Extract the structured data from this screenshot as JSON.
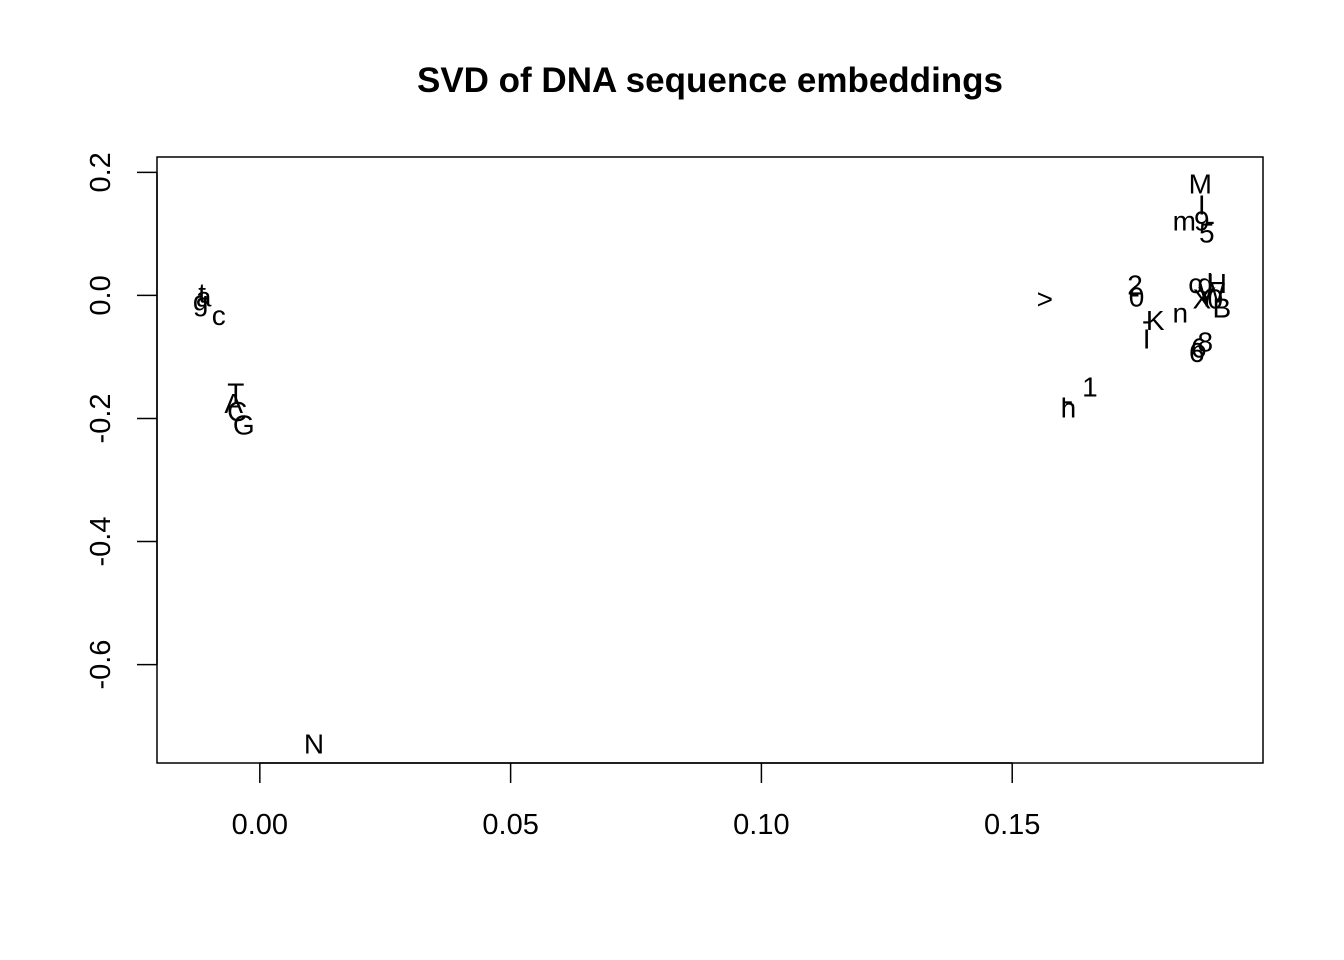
{
  "chart_data": {
    "type": "scatter",
    "title": "SVD of DNA sequence embeddings",
    "xlabel": "",
    "ylabel": "",
    "xlim": [
      -0.0205,
      0.2
    ],
    "ylim": [
      -0.76,
      0.225
    ],
    "x_ticks": [
      {
        "value": 0.0,
        "label": "0.00"
      },
      {
        "value": 0.05,
        "label": "0.05"
      },
      {
        "value": 0.1,
        "label": "0.10"
      },
      {
        "value": 0.15,
        "label": "0.15"
      }
    ],
    "y_ticks": [
      {
        "value": 0.2,
        "label": "0.2"
      },
      {
        "value": 0.0,
        "label": "0.0"
      },
      {
        "value": -0.2,
        "label": "-0.2"
      },
      {
        "value": -0.4,
        "label": "-0.4"
      },
      {
        "value": -0.6,
        "label": "-0.6"
      }
    ],
    "grid": false,
    "legend": "none",
    "points": [
      {
        "label": "t",
        "x": -0.0115,
        "y": 0.005
      },
      {
        "label": "a",
        "x": -0.0112,
        "y": -0.002
      },
      {
        "label": "g",
        "x": -0.0118,
        "y": -0.008
      },
      {
        "label": "c",
        "x": -0.0082,
        "y": -0.032
      },
      {
        "label": "T",
        "x": -0.0048,
        "y": -0.158
      },
      {
        "label": "A",
        "x": -0.0052,
        "y": -0.175
      },
      {
        "label": "C",
        "x": -0.0045,
        "y": -0.188
      },
      {
        "label": "G",
        "x": -0.0032,
        "y": -0.21
      },
      {
        "label": "N",
        "x": 0.0108,
        "y": -0.728
      },
      {
        "label": ">",
        "x": 0.1565,
        "y": -0.005
      },
      {
        "label": "1",
        "x": 0.1655,
        "y": -0.148
      },
      {
        "label": "h",
        "x": 0.1612,
        "y": -0.182
      },
      {
        "label": "-",
        "x": 0.1612,
        "y": -0.17
      },
      {
        "label": "2",
        "x": 0.1745,
        "y": 0.018
      },
      {
        "label": "-",
        "x": 0.1745,
        "y": 0.004
      },
      {
        "label": "0",
        "x": 0.1748,
        "y": -0.002
      },
      {
        "label": "K",
        "x": 0.1785,
        "y": -0.04
      },
      {
        "label": "-",
        "x": 0.1768,
        "y": -0.04
      },
      {
        "label": "I",
        "x": 0.1768,
        "y": -0.07
      },
      {
        "label": "n",
        "x": 0.1835,
        "y": -0.028
      },
      {
        "label": "M",
        "x": 0.1875,
        "y": 0.182
      },
      {
        "label": "I",
        "x": 0.1878,
        "y": 0.148
      },
      {
        "label": "m",
        "x": 0.1843,
        "y": 0.122
      },
      {
        "label": "9",
        "x": 0.1878,
        "y": 0.122
      },
      {
        "label": "-",
        "x": 0.1895,
        "y": 0.122
      },
      {
        "label": "5",
        "x": 0.1888,
        "y": 0.102
      },
      {
        "label": "c",
        "x": 0.1865,
        "y": 0.02
      },
      {
        "label": "d",
        "x": 0.1885,
        "y": 0.02
      },
      {
        "label": "H",
        "x": 0.1908,
        "y": 0.02
      },
      {
        "label": "W",
        "x": 0.1898,
        "y": 0.005
      },
      {
        "label": "Y",
        "x": 0.1888,
        "y": -0.002
      },
      {
        "label": "X",
        "x": 0.1878,
        "y": -0.005
      },
      {
        "label": "0",
        "x": 0.1905,
        "y": -0.005
      },
      {
        "label": "B",
        "x": 0.1918,
        "y": -0.02
      },
      {
        "label": "8",
        "x": 0.1885,
        "y": -0.075
      },
      {
        "label": "6",
        "x": 0.1872,
        "y": -0.085
      },
      {
        "label": "6",
        "x": 0.1868,
        "y": -0.092
      }
    ]
  }
}
